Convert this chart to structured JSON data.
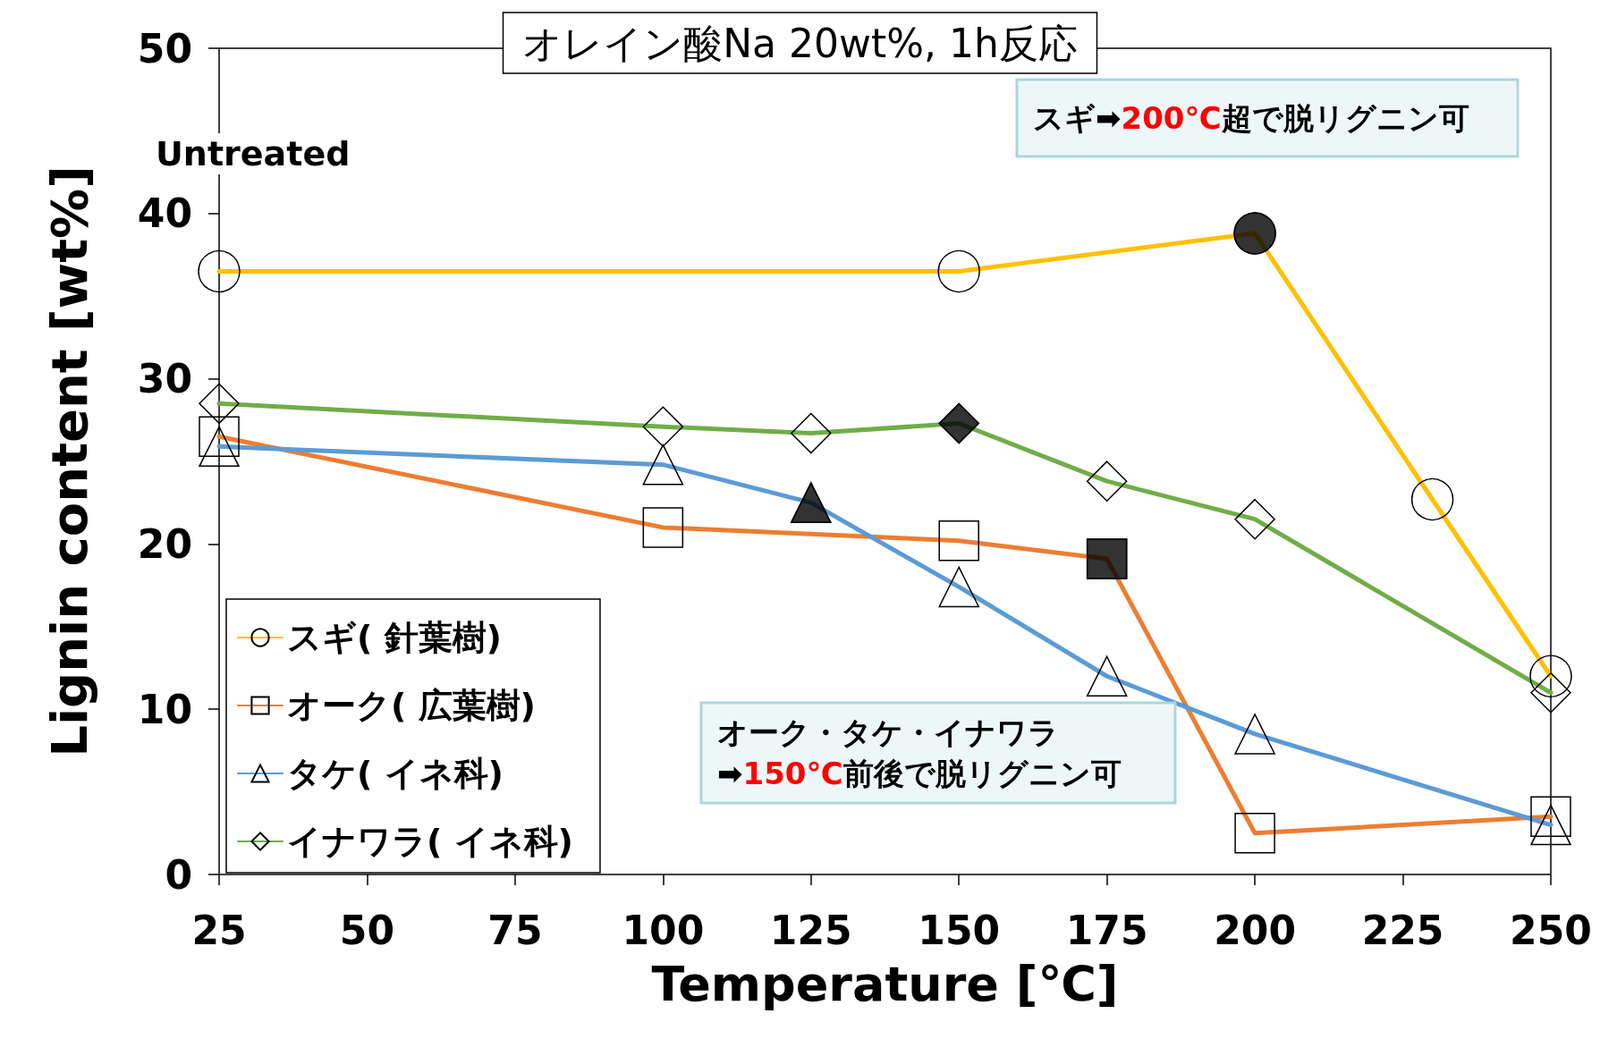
{
  "chart_data": {
    "type": "line",
    "title": "オレイン酸Na 20wt%, 1h反応",
    "xlabel": "Temperature [℃]",
    "ylabel": "Lignin content [wt%]",
    "xlim": [
      25,
      250
    ],
    "xticks": [
      25,
      50,
      75,
      100,
      125,
      150,
      175,
      200,
      225,
      250
    ],
    "ylim": [
      0,
      50
    ],
    "yticks": [
      0,
      10,
      20,
      30,
      40,
      50
    ],
    "grid": false,
    "legend": "bottom left",
    "line_style": "solid",
    "annotations": [
      "Untreated",
      "スギ➡200℃超で脱リグニン可",
      "オーク・タケ・イナワラ\n➡150℃前後で脱リグニン可"
    ],
    "series": [
      {
        "name": "スギ( 針葉樹)",
        "color": "#ffc000",
        "marker": "circle",
        "x": [
          25,
          150,
          200,
          230,
          250
        ],
        "values": [
          36.5,
          36.5,
          38.8,
          22.7,
          12.0
        ]
      },
      {
        "name": "オーク( 広葉樹)",
        "color": "#ed7d31",
        "marker": "square",
        "x": [
          25,
          100,
          150,
          175,
          200,
          250
        ],
        "values": [
          26.5,
          21.0,
          20.2,
          19.1,
          2.5,
          3.5
        ]
      },
      {
        "name": "タケ( イネ科)",
        "color": "#5b9bd5",
        "marker": "triangle",
        "x": [
          25,
          100,
          125,
          150,
          175,
          200,
          250
        ],
        "values": [
          25.9,
          24.8,
          22.5,
          17.4,
          12.0,
          8.5,
          3.0
        ]
      },
      {
        "name": "イナワラ( イネ科)",
        "color": "#70ad47",
        "marker": "diamond",
        "x": [
          25,
          100,
          125,
          150,
          175,
          200,
          250
        ],
        "values": [
          28.5,
          27.1,
          26.7,
          27.3,
          23.8,
          21.5,
          11.0
        ]
      },
      {
        "type": "scatter",
        "color": "#000000",
        "marker": "circle",
        "x": [
          200
        ],
        "values": [
          38.8
        ]
      },
      {
        "type": "scatter",
        "color": "#000000",
        "marker": "square",
        "x": [
          175
        ],
        "values": [
          19.1
        ]
      },
      {
        "type": "scatter",
        "color": "#000000",
        "marker": "triangle",
        "x": [
          125
        ],
        "values": [
          22.5
        ]
      },
      {
        "type": "scatter",
        "color": "#000000",
        "marker": "diamond",
        "x": [
          150
        ],
        "values": [
          27.3
        ]
      }
    ]
  }
}
